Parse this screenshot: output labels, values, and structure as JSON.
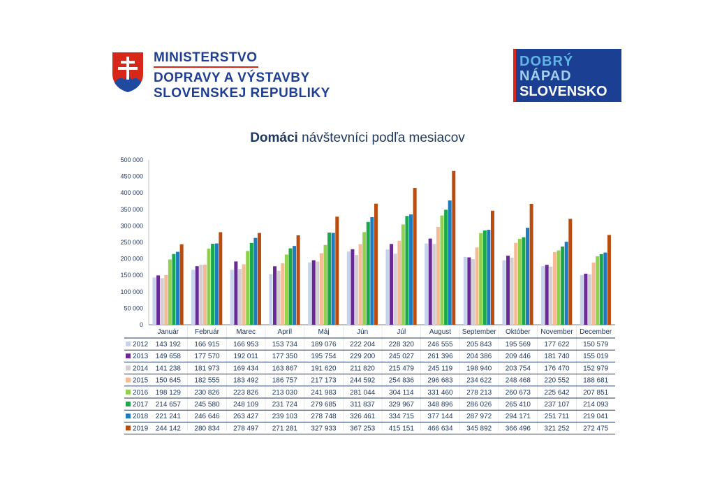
{
  "header": {
    "ministry_line1": "MINISTERSTVO",
    "ministry_line2": "DOPRAVY A VÝSTAVBY",
    "ministry_line3": "SLOVENSKEJ REPUBLIKY",
    "brand_line1": "DOBRÝ",
    "brand_line2": "NÁPAD",
    "brand_line3": "SLOVENSKO"
  },
  "chart_data": {
    "type": "bar",
    "title_bold": "Domáci",
    "title_rest": "návštevníci podľa mesiacov",
    "categories": [
      "Január",
      "Február",
      "Marec",
      "Apríl",
      "Máj",
      "Jún",
      "Júl",
      "August",
      "September",
      "Október",
      "November",
      "December"
    ],
    "ylim": [
      0,
      500000
    ],
    "yticks": [
      0,
      50000,
      100000,
      150000,
      200000,
      250000,
      300000,
      350000,
      400000,
      450000,
      500000
    ],
    "ytick_labels": [
      "0",
      "50 000",
      "100 000",
      "150 000",
      "200 000",
      "250 000",
      "300 000",
      "350 000",
      "400 000",
      "450 000",
      "500 000"
    ],
    "series": [
      {
        "name": "2012",
        "color": "#c5d3ec",
        "values": [
          143192,
          166915,
          166953,
          153734,
          189076,
          222204,
          228320,
          246555,
          205843,
          195569,
          177622,
          150579
        ]
      },
      {
        "name": "2013",
        "color": "#6a2a96",
        "values": [
          149658,
          177570,
          192011,
          177350,
          195754,
          229200,
          245027,
          261396,
          204386,
          209446,
          181740,
          155019
        ]
      },
      {
        "name": "2014",
        "color": "#d2ced2",
        "values": [
          141238,
          181973,
          169434,
          163867,
          191620,
          211820,
          215479,
          245119,
          198940,
          203754,
          176470,
          152979
        ]
      },
      {
        "name": "2015",
        "color": "#f5bb96",
        "values": [
          150645,
          182555,
          183492,
          186757,
          217173,
          244592,
          254836,
          296683,
          234622,
          248468,
          220552,
          188681
        ]
      },
      {
        "name": "2016",
        "color": "#92d050",
        "values": [
          198129,
          230826,
          223826,
          213030,
          241983,
          281044,
          304114,
          331460,
          278213,
          260673,
          225642,
          207851
        ]
      },
      {
        "name": "2017",
        "color": "#1aa84a",
        "values": [
          214657,
          245580,
          248109,
          231724,
          279685,
          311837,
          329967,
          348896,
          286026,
          265410,
          237107,
          214093
        ]
      },
      {
        "name": "2018",
        "color": "#1f7bbf",
        "values": [
          221241,
          246646,
          263427,
          239103,
          278748,
          326461,
          334715,
          377144,
          287972,
          294171,
          251711,
          219041
        ]
      },
      {
        "name": "2019",
        "color": "#b84d12",
        "values": [
          244142,
          280834,
          278497,
          271281,
          327933,
          367253,
          415151,
          466634,
          345892,
          366496,
          321252,
          272475
        ]
      }
    ],
    "xlabel": "",
    "ylabel": "",
    "legend": "table-below"
  }
}
